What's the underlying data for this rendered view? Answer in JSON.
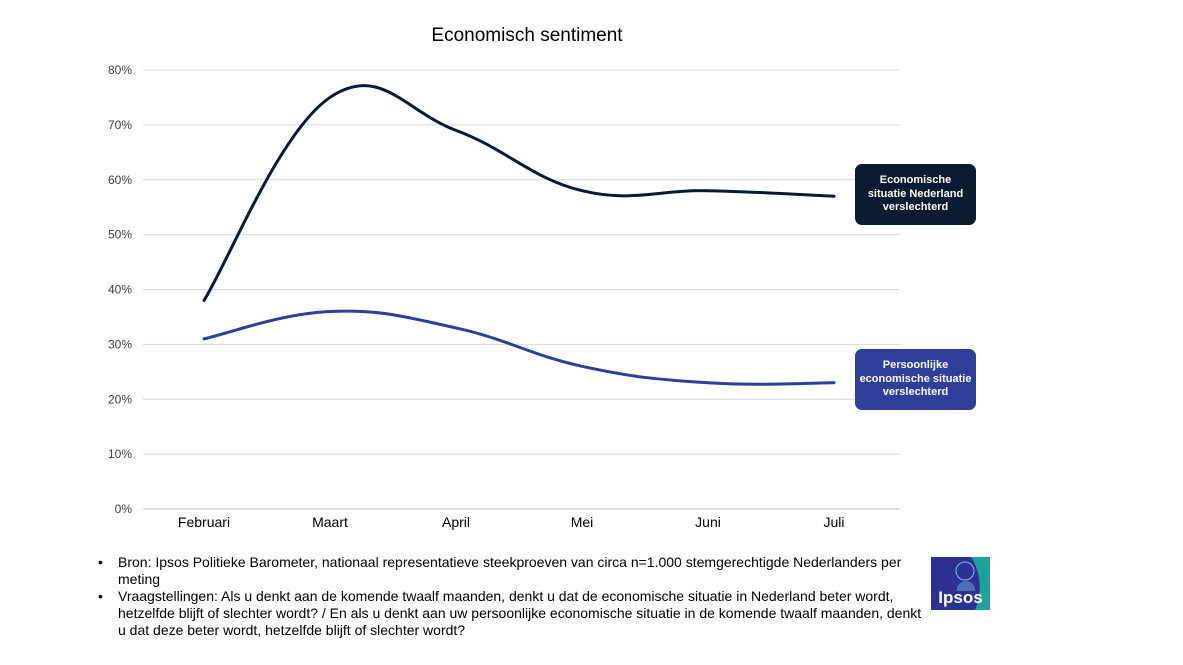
{
  "chart_data": {
    "type": "line",
    "title": "Economisch sentiment",
    "categories": [
      "Februari",
      "Maart",
      "April",
      "Mei",
      "Juni",
      "Juli"
    ],
    "yticks": [
      "0%",
      "10%",
      "20%",
      "30%",
      "40%",
      "50%",
      "60%",
      "70%",
      "80%"
    ],
    "ylim": [
      0,
      80
    ],
    "grid": true,
    "series": [
      {
        "name": "Economische situatie Nederland verslechterd",
        "values": [
          38,
          75,
          69,
          58,
          58,
          57
        ],
        "color": "#0a1a30"
      },
      {
        "name": "Persoonlijke economische situatie verslechterd",
        "values": [
          31,
          36,
          33,
          26,
          23,
          23
        ],
        "color": "#2e3e99"
      }
    ]
  },
  "labels": {
    "economisch": "Economische situatie Nederland verslechterd",
    "persoonlijk": "Persoonlijke economische situatie verslechterd"
  },
  "footnotes": {
    "bron": "Bron: Ipsos Politieke Barometer, nationaal representatieve steekproeven van circa n=1.000 stemgerechtigde Nederlanders per meting",
    "vraag": "Vraagstellingen: Als u denkt aan de komende twaalf maanden, denkt u dat de economische situatie in Nederland beter wordt, hetzelfde blijft of slechter wordt? / En als u denkt aan uw persoonlijke economische situatie in de komende twaalf maanden, denkt u dat deze beter wordt, hetzelfde blijft of slechter wordt?"
  },
  "logo": {
    "text": "Ipsos",
    "bg": "#2e3192",
    "accent": "#1aa39a"
  }
}
